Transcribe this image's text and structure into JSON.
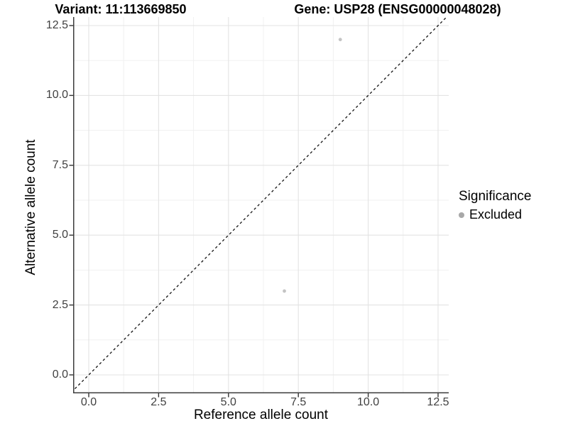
{
  "chart_data": {
    "type": "scatter",
    "title_left": "Variant: 11:113669850",
    "title_right": "Gene: USP28 (ENSG00000048028)",
    "xlabel": "Reference allele count",
    "ylabel": "Alternative allele count",
    "xlim": [
      0,
      12.5
    ],
    "ylim": [
      0,
      12.5
    ],
    "x_ticks": {
      "values": [
        0,
        2.5,
        5,
        7.5,
        10,
        12.5
      ],
      "labels": [
        "0.0",
        "2.5",
        "5.0",
        "7.5",
        "10.0",
        "12.5"
      ]
    },
    "y_ticks": {
      "values": [
        0,
        2.5,
        5,
        7.5,
        10,
        12.5
      ],
      "labels": [
        "0.0",
        "2.5",
        "5.0",
        "7.5",
        "10.0",
        "12.5"
      ]
    },
    "minor_ticks": [
      1.25,
      3.75,
      6.25,
      8.75,
      11.25
    ],
    "grid": "major+minor",
    "legend_position": "right",
    "reference_line": {
      "type": "identity y=x",
      "style": "dashed",
      "color": "#111111"
    },
    "series": [
      {
        "name": "Excluded",
        "marker": "circle",
        "color": "#c4c4c4",
        "points": [
          [
            9,
            12
          ],
          [
            7,
            3
          ]
        ]
      }
    ],
    "legend": {
      "title": "Significance",
      "items": [
        {
          "label": "Excluded",
          "color": "#a8a8a8",
          "marker": "circle"
        }
      ]
    },
    "colors": {
      "background": "#ffffff",
      "grid_major": "#e3e3e3",
      "grid_minor": "#f1f1f1",
      "axis_line": "#3c3c3c",
      "tick_mark": "#333333",
      "tick_label": "#404040",
      "point": "#c4c4c4"
    }
  }
}
